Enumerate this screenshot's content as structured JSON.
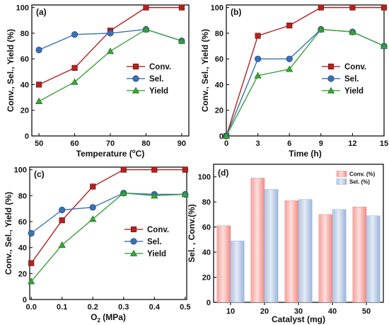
{
  "chart_data": [
    {
      "type": "line",
      "panel_label": "(a)",
      "xlabel_parts": [
        "Temperature (",
        "o",
        "C)"
      ],
      "ylabel": "Conv., Sel., Yield (%)",
      "x": [
        50,
        60,
        70,
        80,
        90
      ],
      "xticks": [
        "50",
        "60",
        "70",
        "80",
        "90"
      ],
      "xlim": [
        48,
        92
      ],
      "yticks": [
        "0",
        "20",
        "40",
        "60",
        "80",
        "100"
      ],
      "ylim": [
        0,
        102
      ],
      "series": [
        {
          "name": "Conv.",
          "values": [
            40,
            53,
            82,
            100,
            100
          ],
          "color": "#b22222",
          "marker": "square"
        },
        {
          "name": "Sel.",
          "values": [
            67,
            79,
            80,
            83,
            74
          ],
          "color": "#3a6fb5",
          "marker": "circle"
        },
        {
          "name": "Yield",
          "values": [
            27,
            42,
            66,
            83,
            74
          ],
          "color": "#3aa33a",
          "marker": "triangle"
        }
      ],
      "legend_position": "middle-right"
    },
    {
      "type": "line",
      "panel_label": "(b)",
      "xlabel": "Time (h)",
      "ylabel": "Conv., Sel., Yield (%)",
      "x": [
        0,
        3,
        6,
        9,
        12,
        15
      ],
      "xticks": [
        "0",
        "3",
        "6",
        "9",
        "12",
        "15"
      ],
      "xlim": [
        0,
        15
      ],
      "yticks": [
        "0",
        "20",
        "40",
        "60",
        "80",
        "100"
      ],
      "ylim": [
        0,
        102
      ],
      "series": [
        {
          "name": "Conv.",
          "values": [
            0,
            78,
            86,
            100,
            100,
            100
          ],
          "color": "#b22222",
          "marker": "square"
        },
        {
          "name": "Sel.",
          "values": [
            0,
            60,
            60,
            83,
            81,
            70
          ],
          "color": "#3a6fb5",
          "marker": "circle"
        },
        {
          "name": "Yield",
          "values": [
            0,
            47,
            52,
            83,
            81,
            70
          ],
          "color": "#3aa33a",
          "marker": "triangle"
        }
      ],
      "legend_position": "middle-right"
    },
    {
      "type": "line",
      "panel_label": "(c)",
      "xlabel_parts": [
        "O",
        "2",
        " (MPa)"
      ],
      "ylabel": "Conv., Sel., Yield (%)",
      "x": [
        0.0,
        0.1,
        0.2,
        0.3,
        0.4,
        0.5
      ],
      "xticks": [
        "0.0",
        "0.1",
        "0.2",
        "0.3",
        "0.4",
        "0.5"
      ],
      "xlim": [
        -0.005,
        0.505
      ],
      "yticks": [
        "0",
        "20",
        "40",
        "60",
        "80",
        "100"
      ],
      "ylim": [
        0,
        102
      ],
      "series": [
        {
          "name": "Conv.",
          "values": [
            28,
            61,
            87,
            100,
            100,
            100
          ],
          "color": "#b22222",
          "marker": "square"
        },
        {
          "name": "Sel.",
          "values": [
            51,
            69,
            71,
            82,
            81,
            81
          ],
          "color": "#3a6fb5",
          "marker": "circle"
        },
        {
          "name": "Yield",
          "values": [
            14,
            42,
            62,
            82,
            80,
            81
          ],
          "color": "#3aa33a",
          "marker": "triangle"
        }
      ],
      "legend_position": "middle-right"
    },
    {
      "type": "bar",
      "panel_label": "(d)",
      "xlabel": "Catalyst (mg)",
      "ylabel": "Sel. ,  Conv.(%)",
      "categories": [
        "10",
        "20",
        "30",
        "40",
        "50"
      ],
      "yticks": [
        "0",
        "20",
        "40",
        "60",
        "80",
        "100"
      ],
      "ylim": [
        0,
        110
      ],
      "series": [
        {
          "name": "Conv. (%)",
          "values": [
            61,
            99,
            81,
            70,
            76
          ],
          "color": "#f08a84"
        },
        {
          "name": "Sel. (%)",
          "values": [
            49,
            90,
            82,
            74,
            69
          ],
          "color": "#9cb4d8"
        }
      ],
      "legend_position": "top-right"
    }
  ]
}
